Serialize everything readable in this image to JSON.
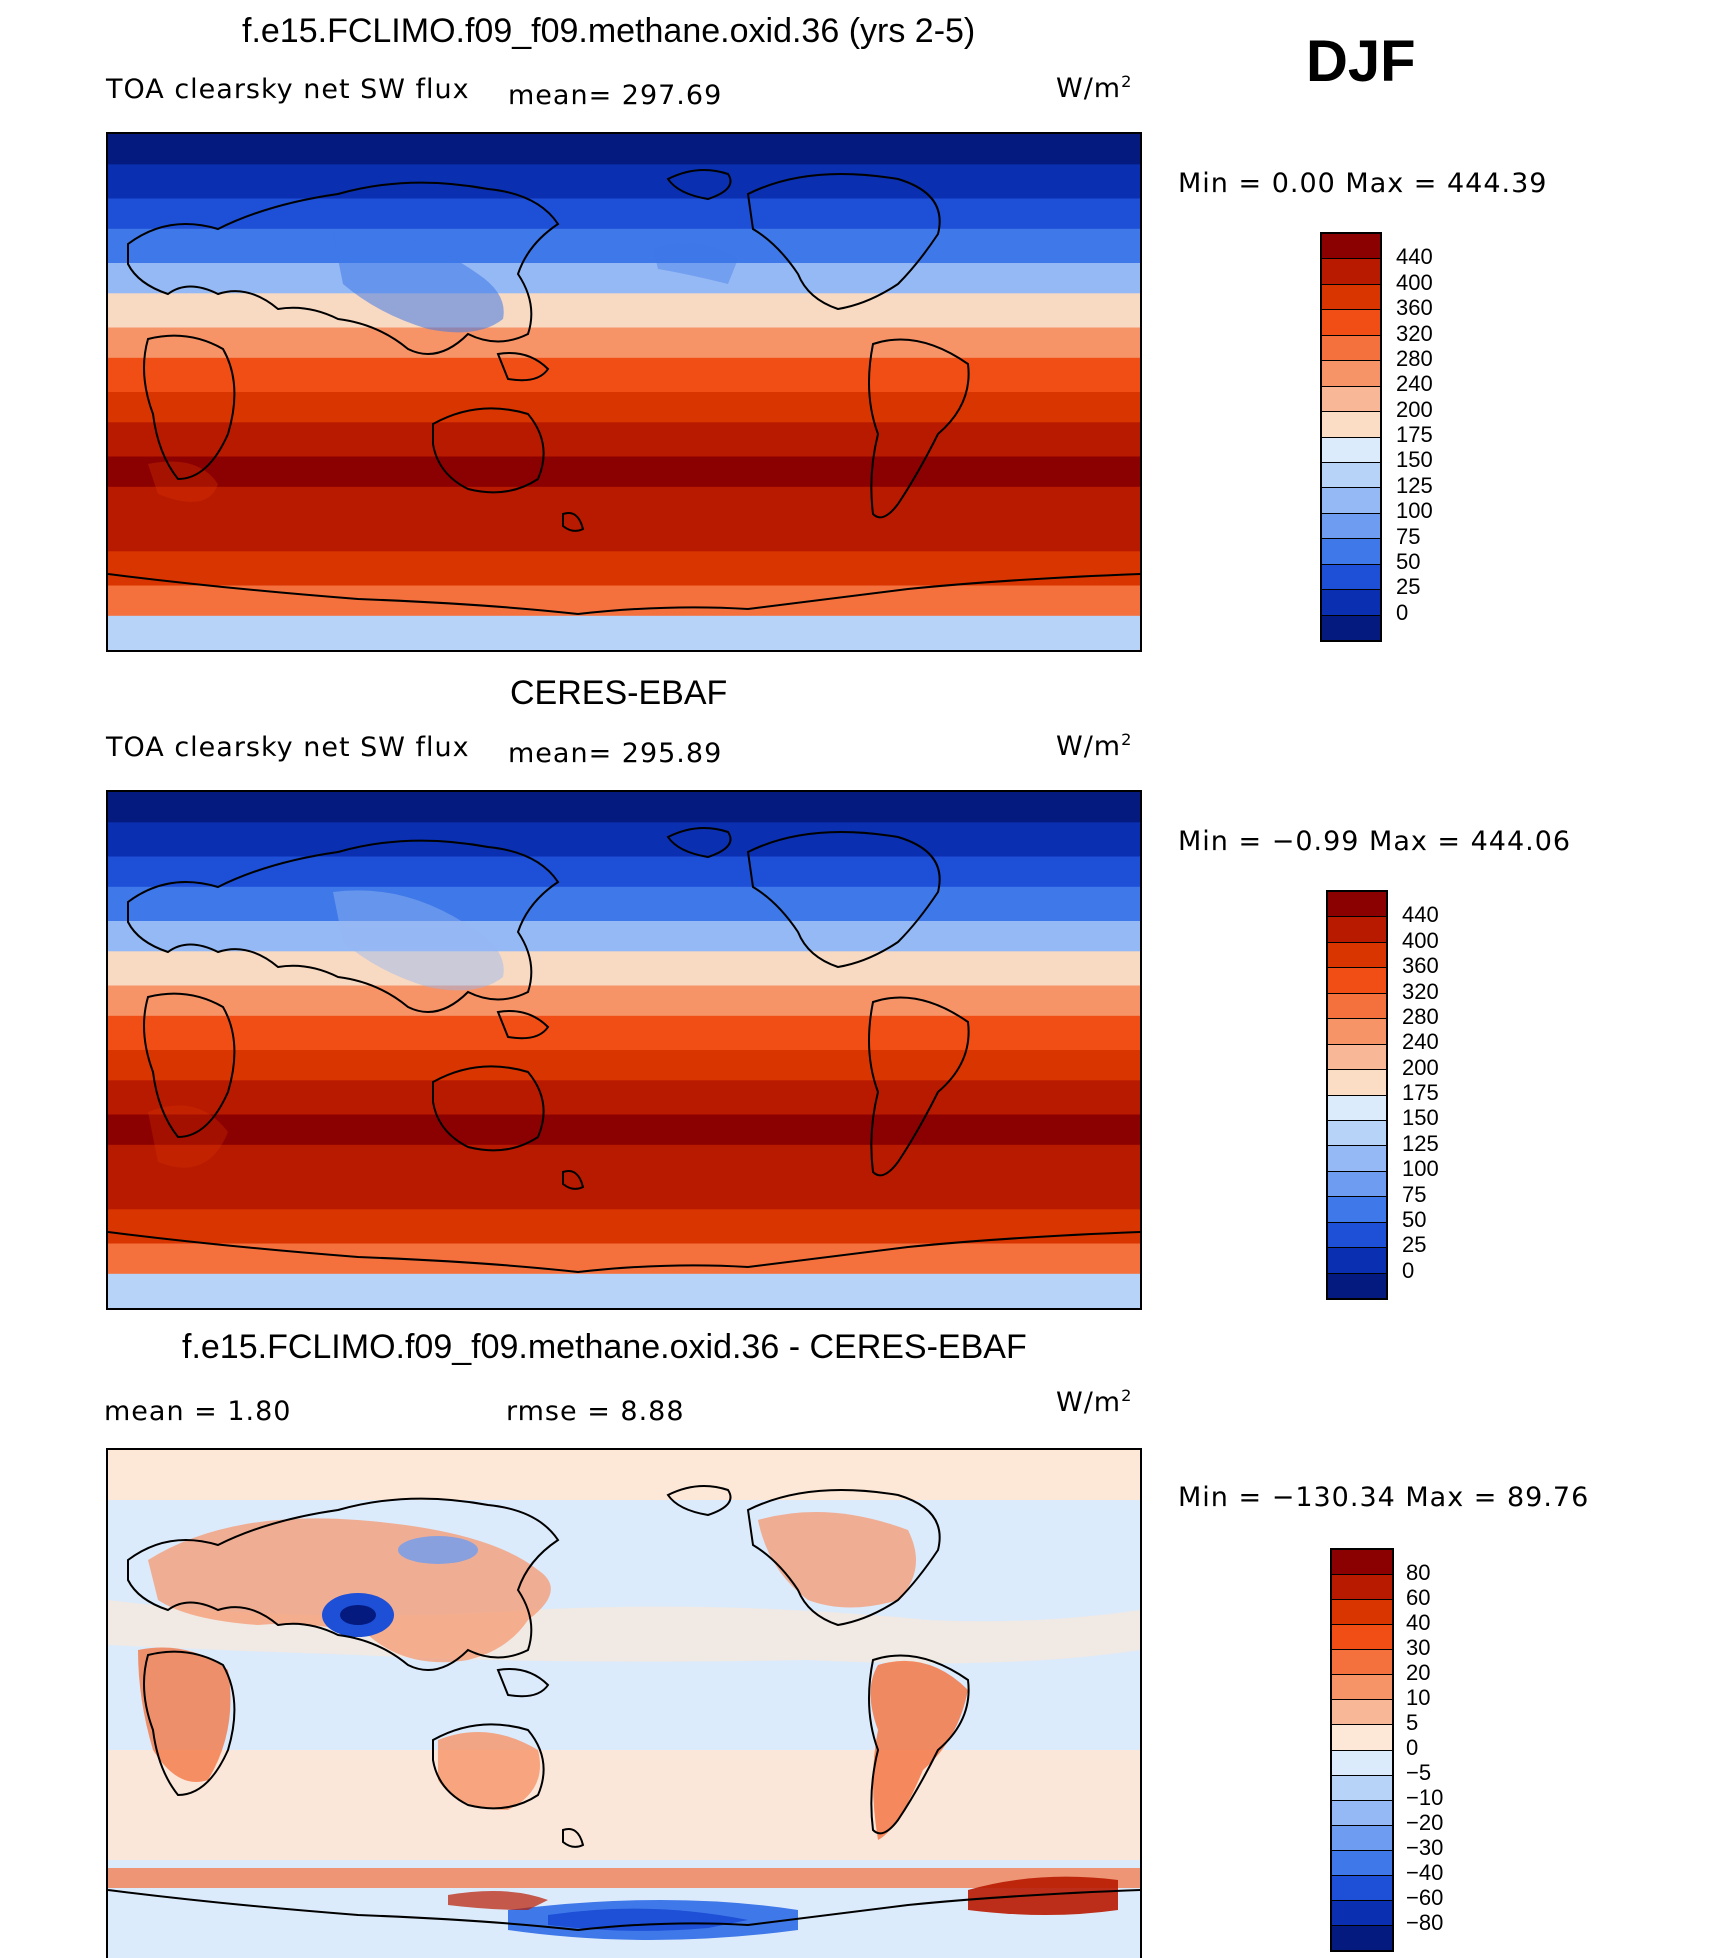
{
  "season": "DJF",
  "panels": [
    {
      "title": "f.e15.FCLIMO.f09_f09.methane.oxid.36 (yrs 2-5)",
      "variable": "TOA clearsky net SW flux",
      "mean_label": "mean= 297.69",
      "units": "W/m",
      "units_exp": "2",
      "minmax": "Min =    0.00 Max =  444.39",
      "colorbar": {
        "levels": [
          "440",
          "400",
          "360",
          "320",
          "280",
          "240",
          "200",
          "175",
          "150",
          "125",
          "100",
          "75",
          "50",
          "25",
          "0"
        ],
        "colors": [
          "#8b0000",
          "#b81a00",
          "#d93500",
          "#f04e15",
          "#f4703c",
          "#f69468",
          "#f8b898",
          "#fbdcc4",
          "#dcebfb",
          "#b8d3f8",
          "#95b9f4",
          "#6e9cf0",
          "#3f78e8",
          "#1d4fd7",
          "#0a2fb0",
          "#041a7e"
        ]
      }
    },
    {
      "title": "CERES-EBAF",
      "variable": "TOA clearsky net SW flux",
      "mean_label": "mean= 295.89",
      "units": "W/m",
      "units_exp": "2",
      "minmax": "Min =  −0.99 Max =  444.06",
      "colorbar": {
        "levels": [
          "440",
          "400",
          "360",
          "320",
          "280",
          "240",
          "200",
          "175",
          "150",
          "125",
          "100",
          "75",
          "50",
          "25",
          "0"
        ],
        "colors": [
          "#8b0000",
          "#b81a00",
          "#d93500",
          "#f04e15",
          "#f4703c",
          "#f69468",
          "#f8b898",
          "#fbdcc4",
          "#dcebfb",
          "#b8d3f8",
          "#95b9f4",
          "#6e9cf0",
          "#3f78e8",
          "#1d4fd7",
          "#0a2fb0",
          "#041a7e"
        ]
      }
    },
    {
      "title": "f.e15.FCLIMO.f09_f09.methane.oxid.36 - CERES-EBAF",
      "mean_label": "mean =    1.80",
      "rmse_label": "rmse =    8.88",
      "units": "W/m",
      "units_exp": "2",
      "minmax": "Min = −130.34 Max =   89.76",
      "colorbar": {
        "levels": [
          "80",
          "60",
          "40",
          "30",
          "20",
          "10",
          "5",
          "0",
          "−5",
          "−10",
          "−20",
          "−30",
          "−40",
          "−60",
          "−80"
        ],
        "colors": [
          "#8b0000",
          "#b81a00",
          "#d93500",
          "#f04e15",
          "#f4703c",
          "#f69468",
          "#f8b898",
          "#fde7d6",
          "#dcebfb",
          "#b8d3f8",
          "#95b9f4",
          "#6e9cf0",
          "#3f78e8",
          "#1d4fd7",
          "#0a2fb0",
          "#041a7e"
        ]
      }
    }
  ],
  "map_colors": {
    "sw_bands": [
      "#041a7e",
      "#0a2fb0",
      "#1d4fd7",
      "#3f78e8",
      "#95b9f4",
      "#f8d9c2",
      "#f69468",
      "#f04e15",
      "#d93500",
      "#b81a00",
      "#8b0000",
      "#b81a00",
      "#b81a00",
      "#d93500",
      "#f4703c",
      "#b8d3f8"
    ],
    "diff_background": "#dcebfb",
    "diff_land": "#f69468",
    "diff_ocean_warm": "#fde7d6",
    "diff_negative": "#1d4fd7",
    "coastline": "#000000"
  }
}
